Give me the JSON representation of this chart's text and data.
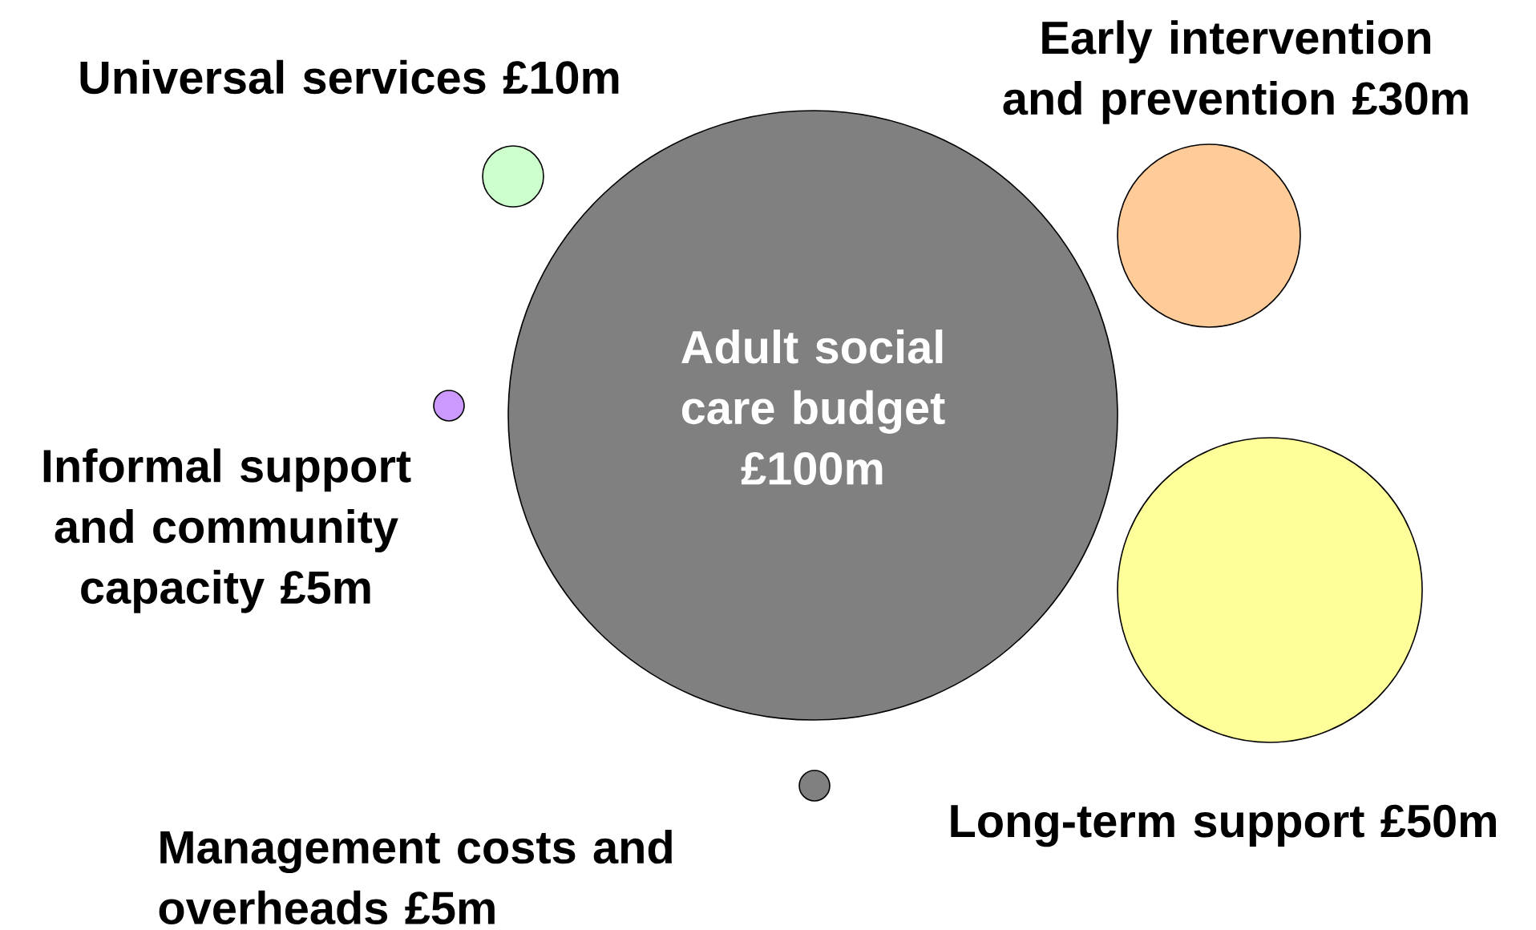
{
  "chart_data": {
    "type": "other",
    "categories": [
      "Universal services",
      "Early intervention and prevention",
      "Adult social care budget",
      "Informal support and community capacity",
      "Long-term support",
      "Management costs and overheads"
    ],
    "values": [
      10,
      30,
      100,
      5,
      50,
      5
    ],
    "value_labels": [
      "£10m",
      "£30m",
      "£100m",
      "£5m",
      "£50m",
      "£5m"
    ],
    "colors": [
      "#ccffcc",
      "#ffcc99",
      "#808080",
      "#cc99ff",
      "#ffff99",
      "#808080"
    ]
  }
}
